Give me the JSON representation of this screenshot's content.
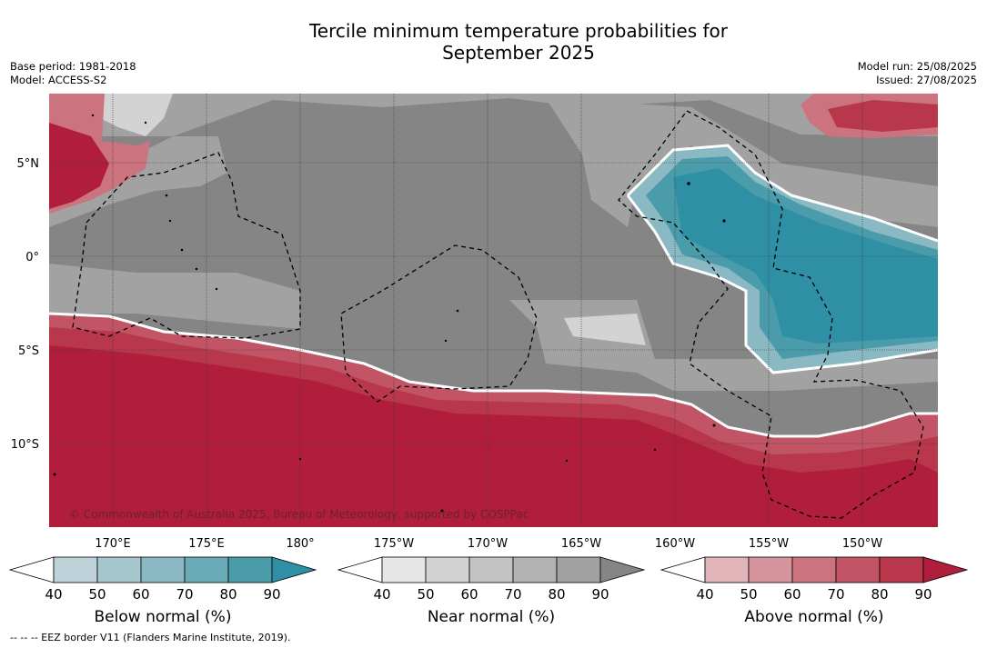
{
  "title_line1": "Tercile minimum temperature probabilities for",
  "title_line2": "September 2025",
  "base_period": "Base period: 1981-2018",
  "model": "Model: ACCESS-S2",
  "model_run": "Model run: 25/08/2025",
  "issued": "Issued: 27/08/2025",
  "map": {
    "lat_labels": [
      "5°N",
      "0°",
      "5°S",
      "10°S"
    ],
    "lon_labels": [
      "170°E",
      "175°E",
      "180°",
      "175°W",
      "170°W",
      "165°W",
      "160°W",
      "155°W",
      "150°W"
    ],
    "copyright": "© Commonwealth of Australia 2025, Bureau of Meteorology, supported by COSPPac"
  },
  "colorbars": [
    {
      "title": "Below normal (%)",
      "ticks": [
        "40",
        "50",
        "60",
        "70",
        "80",
        "90"
      ],
      "colors": [
        "#ffffff",
        "#bdd2d9",
        "#a6c7cd",
        "#8ab8c3",
        "#6aaab6",
        "#4a9cab",
        "#2e8fa5"
      ]
    },
    {
      "title": "Near normal (%)",
      "ticks": [
        "40",
        "50",
        "60",
        "70",
        "80",
        "90"
      ],
      "colors": [
        "#ffffff",
        "#e6e6e6",
        "#d3d3d3",
        "#c3c3c3",
        "#b2b2b2",
        "#a2a2a2",
        "#858585"
      ]
    },
    {
      "title": "Above normal (%)",
      "ticks": [
        "40",
        "50",
        "60",
        "70",
        "80",
        "90"
      ],
      "colors": [
        "#ffffff",
        "#e0b4b9",
        "#d6959d",
        "#cb737e",
        "#c15565",
        "#b8374b",
        "#b01e3c"
      ]
    }
  ],
  "footnote": "--  --  -- EEZ border V11 (Flanders Marine Institute, 2019)."
}
